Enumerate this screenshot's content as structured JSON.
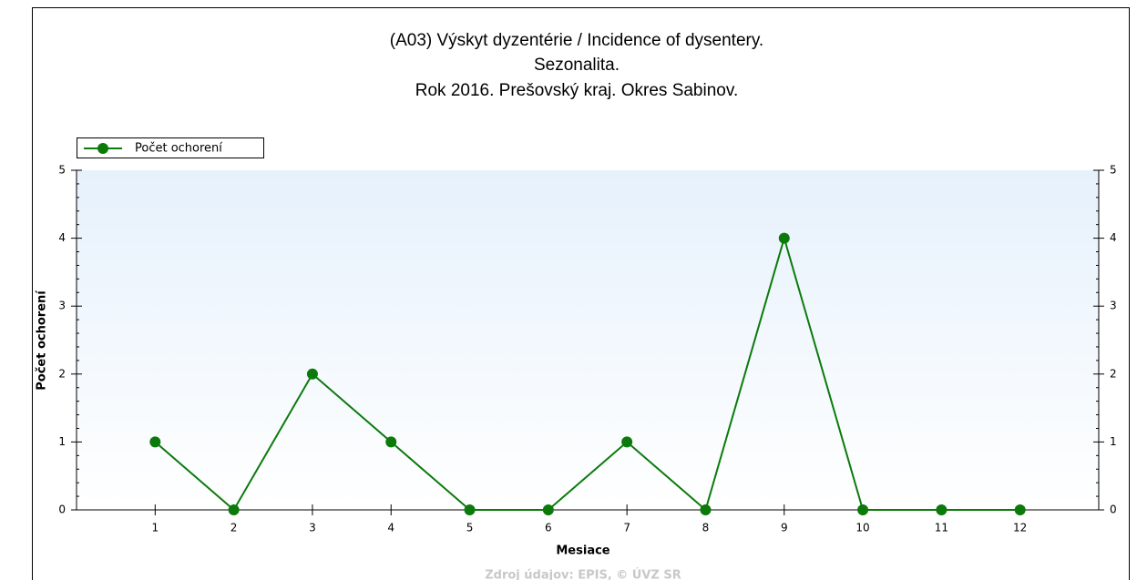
{
  "chart_data": {
    "type": "line",
    "title": [
      "(A03) Výskyt dyzentérie / Incidence of dysentery.",
      "Sezonalita.",
      "Rok 2016. Prešovský kraj. Okres Sabinov."
    ],
    "x_label": "Mesiace",
    "y_label": "Počet ochorení",
    "source": "Zdroj údajov: EPIS, © ÚVZ SR",
    "x": [
      1,
      2,
      3,
      4,
      5,
      6,
      7,
      8,
      9,
      10,
      11,
      12
    ],
    "series": [
      {
        "name": "Počet ochorení",
        "color": "#0b7a0b",
        "values": [
          1,
          0,
          2,
          1,
          0,
          0,
          1,
          0,
          4,
          0,
          0,
          0
        ]
      }
    ],
    "xlim": [
      0,
      13
    ],
    "xticks": [
      1,
      2,
      3,
      4,
      5,
      6,
      7,
      8,
      9,
      10,
      11,
      12
    ],
    "ylim": [
      0,
      5
    ],
    "yticks": [
      0,
      1,
      2,
      3,
      4,
      5
    ],
    "y2lim": [
      0,
      5
    ],
    "y2ticks": [
      0,
      1,
      2,
      3,
      4,
      5
    ],
    "legend": "top-left"
  }
}
